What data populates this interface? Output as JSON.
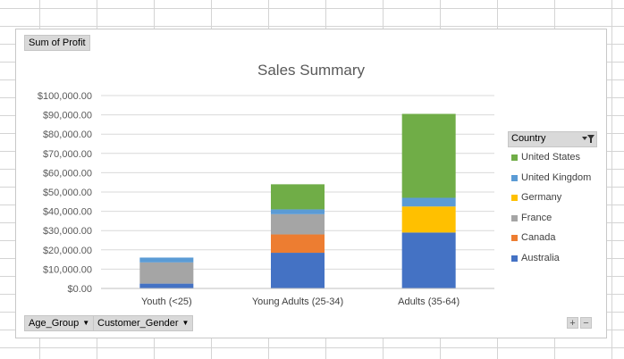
{
  "pivot": {
    "value_field_label": "Sum of Profit",
    "axis_fields": [
      "Age_Group",
      "Customer_Gender"
    ],
    "legend_field": "Country",
    "zoom_in": "+",
    "zoom_out": "−"
  },
  "chart_data": {
    "type": "bar",
    "stacked": true,
    "title": "Sales Summary",
    "categories": [
      "Youth (<25)",
      "Young Adults (25-34)",
      "Adults (35-64)"
    ],
    "series": [
      {
        "name": "Australia",
        "color": "#4472C4",
        "values": [
          2500,
          18500,
          29000
        ]
      },
      {
        "name": "Canada",
        "color": "#ED7D31",
        "values": [
          0,
          9500,
          0
        ]
      },
      {
        "name": "France",
        "color": "#A5A5A5",
        "values": [
          11000,
          10500,
          0
        ]
      },
      {
        "name": "Germany",
        "color": "#FFC000",
        "values": [
          0,
          0,
          13500
        ]
      },
      {
        "name": "United Kingdom",
        "color": "#5B9BD5",
        "values": [
          2500,
          2500,
          4500
        ]
      },
      {
        "name": "United States",
        "color": "#70AD47",
        "values": [
          0,
          13000,
          43500
        ]
      }
    ],
    "ylim": [
      0,
      100000
    ],
    "yticks": [
      "$0.00",
      "$10,000.00",
      "$20,000.00",
      "$30,000.00",
      "$40,000.00",
      "$50,000.00",
      "$60,000.00",
      "$70,000.00",
      "$80,000.00",
      "$90,000.00",
      "$100,000.00"
    ],
    "grid": true,
    "legend_position": "right"
  }
}
